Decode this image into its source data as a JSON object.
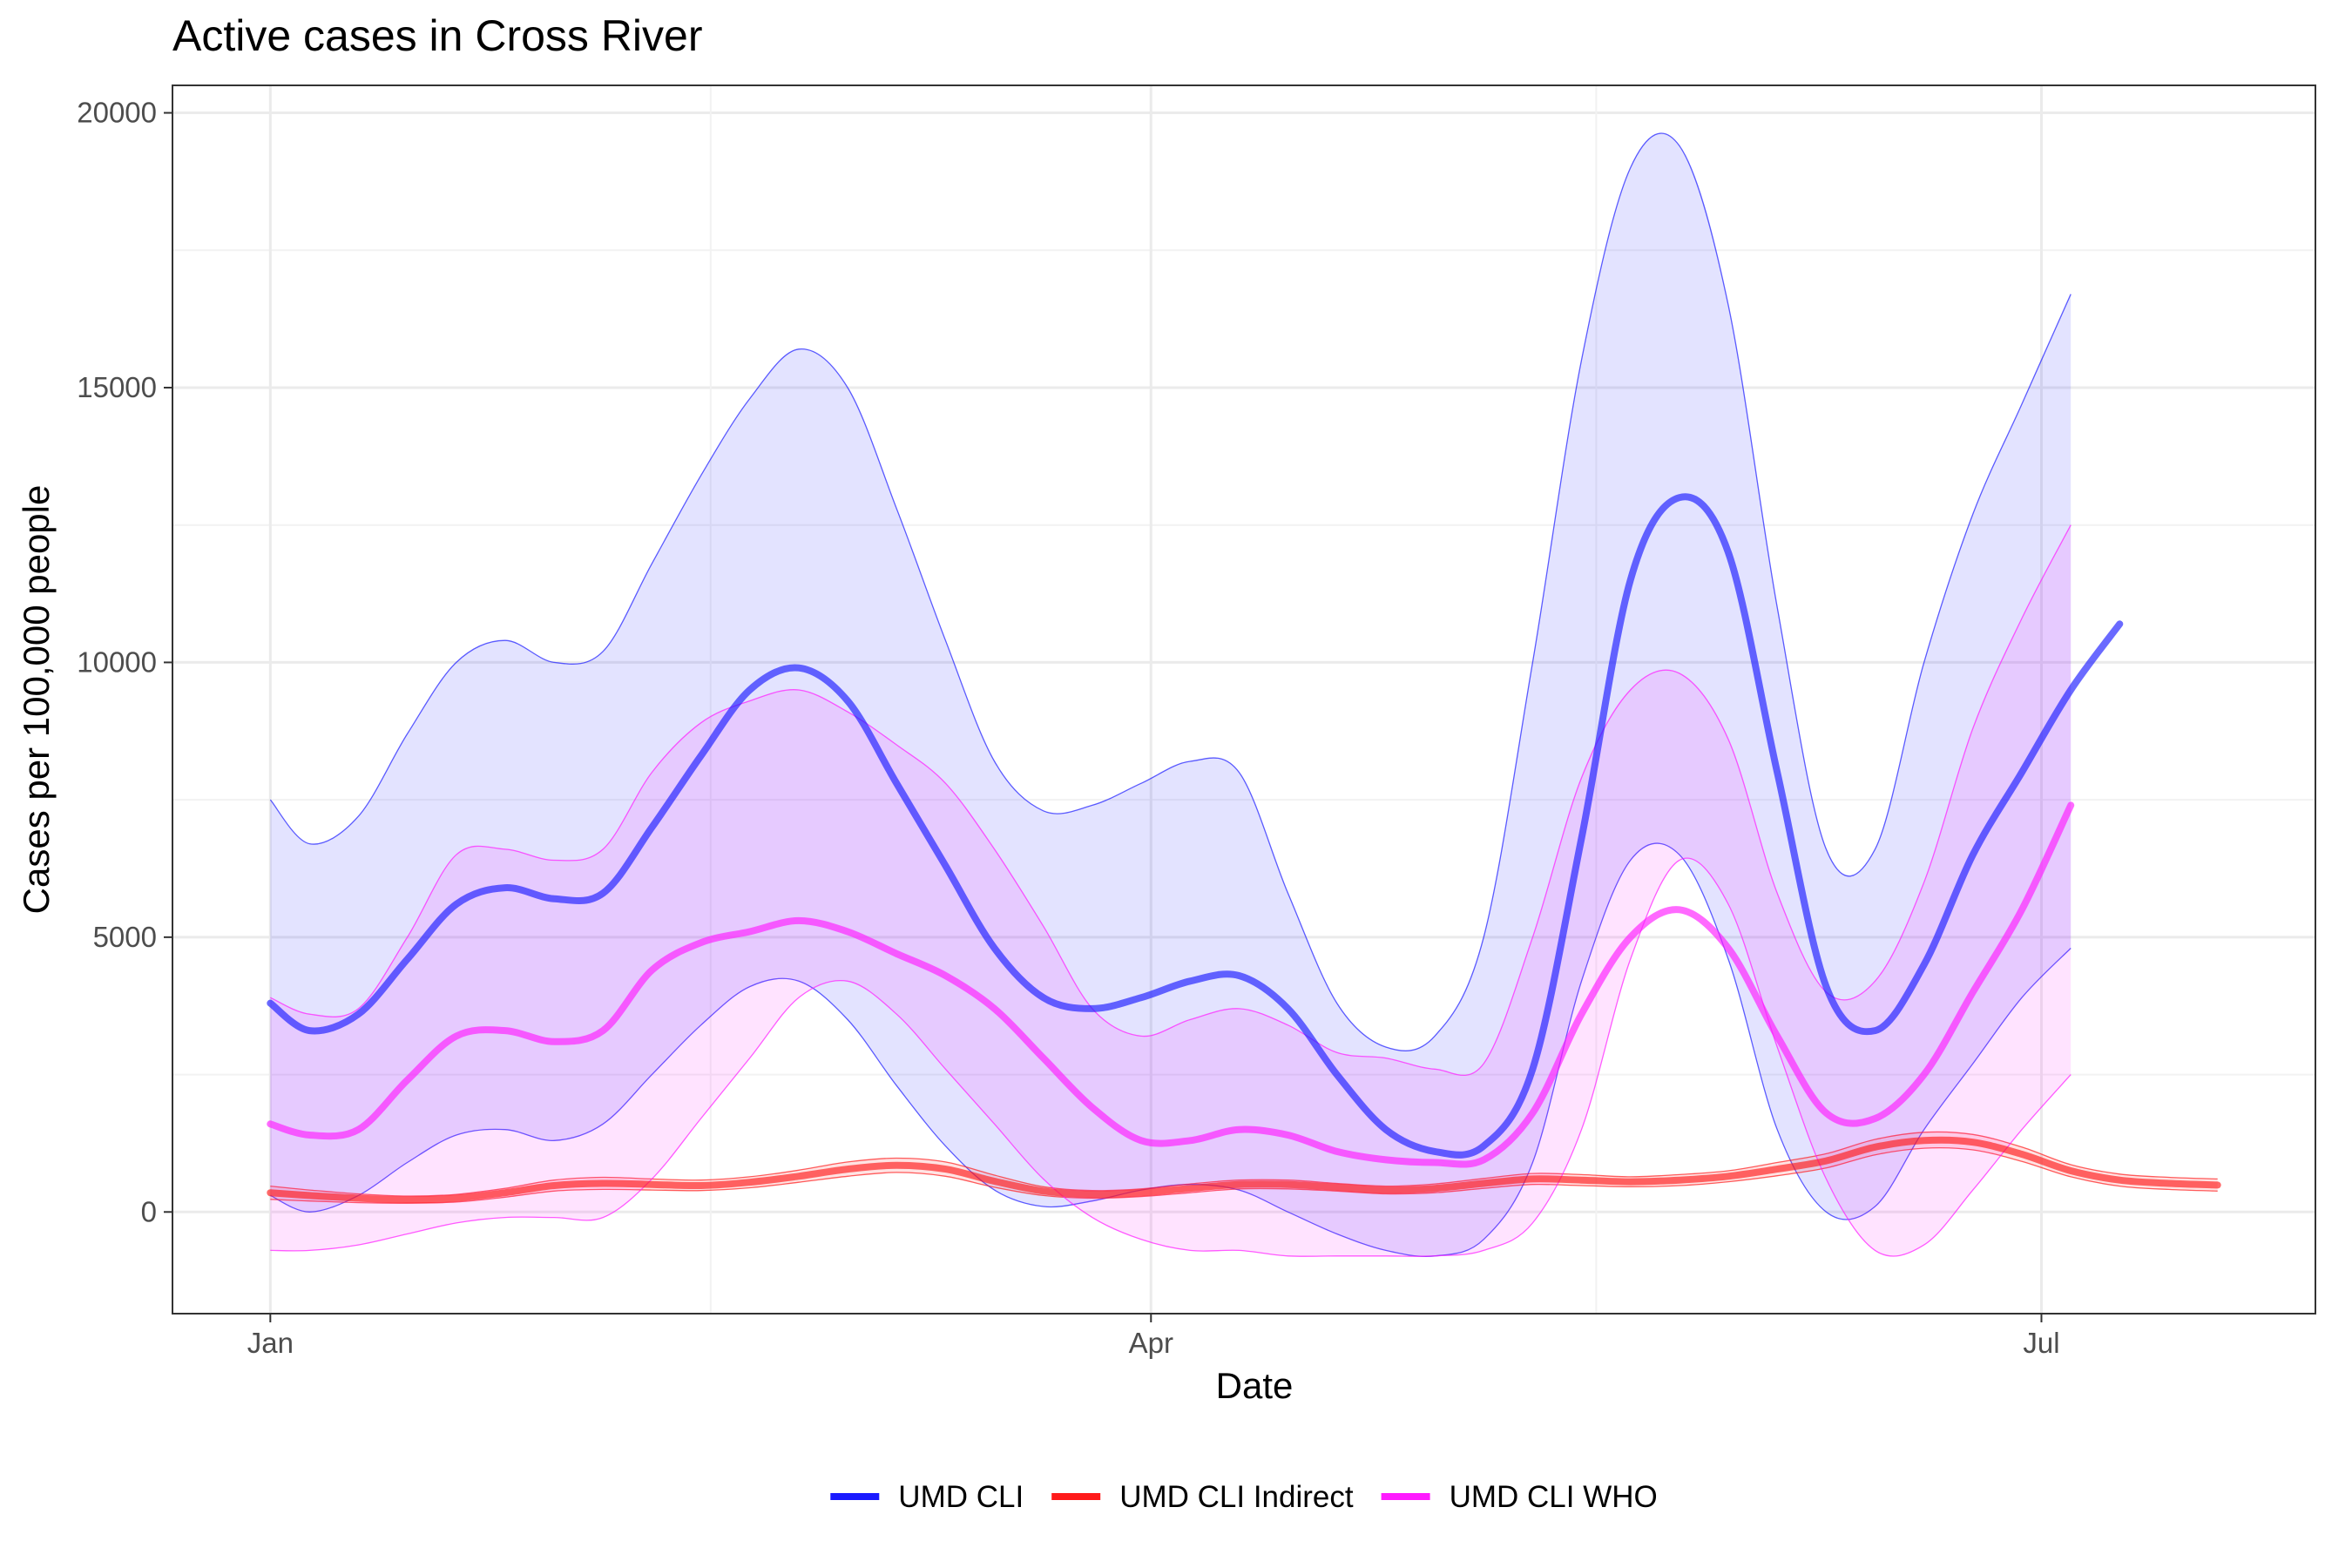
{
  "chart_data": {
    "type": "area",
    "title": "Active cases in Cross River",
    "xlabel": "Date",
    "ylabel": "Cases per 100,000 people",
    "x_tick_labels": [
      "Jan",
      "Apr",
      "Jul"
    ],
    "x_tick_dates": [
      "2021-01-01",
      "2021-04-01",
      "2021-07-01"
    ],
    "y_ticks": [
      0,
      5000,
      10000,
      15000,
      20000
    ],
    "ylim": [
      -1850,
      20500
    ],
    "xlim": [
      "2020-12-22",
      "2021-07-29"
    ],
    "grid": true,
    "legend_position": "bottom",
    "x": [
      "2021-01-01",
      "2021-01-05",
      "2021-01-10",
      "2021-01-15",
      "2021-01-20",
      "2021-01-25",
      "2021-01-30",
      "2021-02-04",
      "2021-02-09",
      "2021-02-14",
      "2021-02-19",
      "2021-02-24",
      "2021-03-01",
      "2021-03-06",
      "2021-03-11",
      "2021-03-16",
      "2021-03-21",
      "2021-03-26",
      "2021-03-31",
      "2021-04-05",
      "2021-04-10",
      "2021-04-15",
      "2021-04-20",
      "2021-04-25",
      "2021-04-30",
      "2021-05-05",
      "2021-05-10",
      "2021-05-15",
      "2021-05-20",
      "2021-05-25",
      "2021-05-30",
      "2021-06-04",
      "2021-06-09",
      "2021-06-14",
      "2021-06-19",
      "2021-06-24",
      "2021-06-29",
      "2021-07-04",
      "2021-07-09",
      "2021-07-14",
      "2021-07-19"
    ],
    "series": [
      {
        "name": "UMD CLI",
        "color": "#1a1aff",
        "values": [
          3800,
          3300,
          3600,
          4600,
          5600,
          5900,
          5700,
          5800,
          7000,
          8300,
          9500,
          9900,
          9300,
          7800,
          6300,
          4800,
          3900,
          3700,
          3900,
          4200,
          4300,
          3700,
          2500,
          1500,
          1100,
          1200,
          2600,
          6800,
          11500,
          13000,
          12000,
          8000,
          4100,
          3300,
          4500,
          6500,
          8000,
          9500,
          10700,
          null,
          null
        ],
        "lower": [
          300,
          0,
          300,
          900,
          1400,
          1500,
          1300,
          1600,
          2500,
          3400,
          4100,
          4200,
          3500,
          2300,
          1200,
          400,
          100,
          200,
          400,
          500,
          400,
          0,
          -400,
          -700,
          -800,
          -500,
          900,
          4200,
          6400,
          6500,
          4600,
          1500,
          0,
          100,
          1500,
          2700,
          3900,
          4800,
          null,
          null,
          null
        ],
        "upper": [
          7500,
          6700,
          7200,
          8700,
          10000,
          10400,
          10000,
          10200,
          11800,
          13400,
          14800,
          15700,
          15000,
          12800,
          10400,
          8200,
          7300,
          7400,
          7800,
          8200,
          8000,
          5800,
          3800,
          3000,
          3200,
          5000,
          10000,
          15500,
          19000,
          19400,
          16500,
          11000,
          6600,
          6600,
          10000,
          12700,
          14700,
          16700,
          null,
          null,
          null
        ]
      },
      {
        "name": "UMD CLI Indirect",
        "color": "#ff1a1a",
        "values": [
          350,
          300,
          250,
          220,
          250,
          350,
          480,
          520,
          500,
          480,
          540,
          650,
          780,
          850,
          780,
          560,
          380,
          320,
          350,
          430,
          500,
          500,
          450,
          400,
          430,
          520,
          600,
          580,
          550,
          580,
          650,
          780,
          930,
          1180,
          1300,
          1270,
          1050,
          750,
          580,
          520,
          490
        ],
        "lower": [
          230,
          200,
          170,
          160,
          180,
          270,
          380,
          410,
          400,
          390,
          440,
          540,
          650,
          720,
          650,
          450,
          300,
          250,
          280,
          350,
          420,
          420,
          380,
          330,
          350,
          430,
          500,
          480,
          460,
          480,
          550,
          660,
          800,
          1040,
          1160,
          1130,
          920,
          640,
          470,
          410,
          380
        ],
        "upper": [
          470,
          400,
          330,
          290,
          320,
          430,
          580,
          630,
          600,
          580,
          640,
          760,
          910,
          980,
          910,
          670,
          460,
          390,
          420,
          510,
          580,
          580,
          520,
          470,
          510,
          610,
          700,
          680,
          640,
          680,
          750,
          900,
          1060,
          1320,
          1450,
          1410,
          1180,
          860,
          690,
          630,
          600
        ]
      },
      {
        "name": "UMD CLI WHO",
        "color": "#ff1aff",
        "values": [
          1600,
          1400,
          1500,
          2400,
          3200,
          3300,
          3100,
          3300,
          4400,
          4900,
          5100,
          5300,
          5100,
          4700,
          4300,
          3700,
          2800,
          1900,
          1300,
          1300,
          1500,
          1400,
          1100,
          950,
          900,
          950,
          1800,
          3600,
          5000,
          5500,
          4800,
          3200,
          1800,
          1700,
          2500,
          4000,
          5500,
          7400,
          null,
          null,
          null
        ],
        "lower": [
          -700,
          -700,
          -600,
          -400,
          -200,
          -100,
          -100,
          -100,
          600,
          1700,
          2800,
          3900,
          4200,
          3600,
          2600,
          1600,
          600,
          -100,
          -500,
          -700,
          -700,
          -800,
          -800,
          -800,
          -800,
          -700,
          -200,
          1500,
          4600,
          6400,
          5600,
          3000,
          600,
          -700,
          -600,
          400,
          1500,
          2500,
          null,
          null,
          null
        ],
        "upper": [
          3900,
          3600,
          3700,
          5000,
          6500,
          6600,
          6400,
          6600,
          8000,
          8900,
          9300,
          9500,
          9100,
          8500,
          7800,
          6600,
          5200,
          3700,
          3200,
          3500,
          3700,
          3400,
          2900,
          2800,
          2600,
          2700,
          5000,
          7900,
          9500,
          9800,
          8600,
          5800,
          4000,
          4200,
          6000,
          8800,
          10800,
          12500,
          null,
          null,
          null
        ]
      }
    ]
  }
}
